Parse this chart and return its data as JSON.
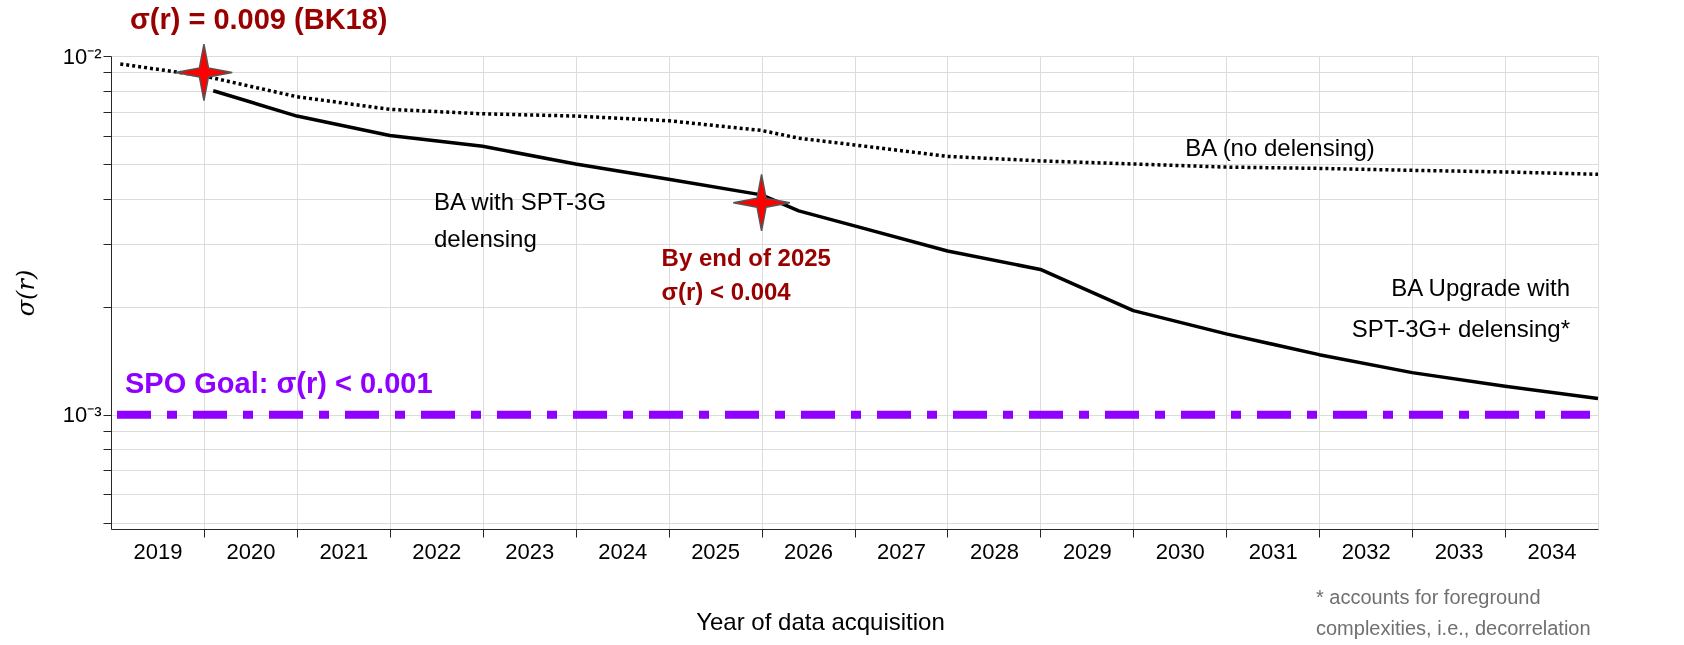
{
  "chart_data": {
    "type": "line",
    "xlabel": "Year of data acquisition",
    "ylabel": "σ(r)",
    "log": true,
    "grid": true,
    "legend": false,
    "xlim": [
      2018.5,
      2034.5
    ],
    "xticks": [
      {
        "value": 2019,
        "label": "2019"
      },
      {
        "value": 2020,
        "label": "2020"
      },
      {
        "value": 2021,
        "label": "2021"
      },
      {
        "value": 2022,
        "label": "2022"
      },
      {
        "value": 2023,
        "label": "2023"
      },
      {
        "value": 2024,
        "label": "2024"
      },
      {
        "value": 2025,
        "label": "2025"
      },
      {
        "value": 2026,
        "label": "2026"
      },
      {
        "value": 2027,
        "label": "2027"
      },
      {
        "value": 2028,
        "label": "2028"
      },
      {
        "value": 2029,
        "label": "2029"
      },
      {
        "value": 2030,
        "label": "2030"
      },
      {
        "value": 2031,
        "label": "2031"
      },
      {
        "value": 2032,
        "label": "2032"
      },
      {
        "value": 2033,
        "label": "2033"
      },
      {
        "value": 2034,
        "label": "2034"
      },
      {
        "value": 2019.5,
        "label": null
      },
      {
        "value": 2020.5,
        "label": null
      },
      {
        "value": 2021.5,
        "label": null
      },
      {
        "value": 2022.5,
        "label": null
      },
      {
        "value": 2023.5,
        "label": null
      },
      {
        "value": 2024.5,
        "label": null
      },
      {
        "value": 2025.5,
        "label": null
      },
      {
        "value": 2026.5,
        "label": null
      },
      {
        "value": 2027.5,
        "label": null
      },
      {
        "value": 2028.5,
        "label": null
      },
      {
        "value": 2029.5,
        "label": null
      },
      {
        "value": 2030.5,
        "label": null
      },
      {
        "value": 2031.5,
        "label": null
      },
      {
        "value": 2032.5,
        "label": null
      },
      {
        "value": 2033.5,
        "label": null
      }
    ],
    "ylim": [
      0.00048,
      0.01
    ],
    "yticks": [
      {
        "value": 0.01,
        "label": "10⁻²"
      },
      {
        "value": 0.001,
        "label": "10⁻³"
      },
      {
        "value": 0.009,
        "label": null
      },
      {
        "value": 0.008,
        "label": null
      },
      {
        "value": 0.007,
        "label": null
      },
      {
        "value": 0.006,
        "label": null
      },
      {
        "value": 0.005,
        "label": null
      },
      {
        "value": 0.004,
        "label": null
      },
      {
        "value": 0.003,
        "label": null
      },
      {
        "value": 0.002,
        "label": null
      },
      {
        "value": 0.0009,
        "label": null
      },
      {
        "value": 0.0008,
        "label": null
      },
      {
        "value": 0.0007,
        "label": null
      },
      {
        "value": 0.0006,
        "label": null
      },
      {
        "value": 0.0005,
        "label": null
      }
    ],
    "series": [
      {
        "name": "BA (no delensing)",
        "color": "#000000",
        "line_style": "dotted",
        "x": [
          2018.6,
          2019.5,
          2020.5,
          2021.5,
          2022.5,
          2023.5,
          2024.5,
          2025.5,
          2025.9,
          2026.5,
          2027.5,
          2028.5,
          2029.5,
          2030.5,
          2031.5,
          2032.5,
          2033.5,
          2034.5
        ],
        "values": [
          0.0095,
          0.0088,
          0.0077,
          0.0071,
          0.0069,
          0.0068,
          0.0066,
          0.0062,
          0.0059,
          0.00565,
          0.00525,
          0.0051,
          0.005,
          0.0049,
          0.00486,
          0.0048,
          0.00475,
          0.00468
        ]
      },
      {
        "name": "BA with SPT-3G\ndelensing",
        "color": "#000000",
        "line_style": "solid",
        "x": [
          2019.6,
          2020.5,
          2021.5,
          2022.5,
          2023.5,
          2024.5,
          2025.5,
          2025.9,
          2026.5,
          2027.5,
          2028.5,
          2029.5,
          2030.5,
          2031.5,
          2032.5,
          2033.5,
          2034.5
        ],
        "values": [
          0.008,
          0.0068,
          0.006,
          0.0056,
          0.005,
          0.00453,
          0.0041,
          0.0037,
          0.00336,
          0.00286,
          0.00254,
          0.00195,
          0.00168,
          0.00147,
          0.00131,
          0.0012,
          0.00111
        ]
      },
      {
        "type": "scatter",
        "color": "#ff0000",
        "marker": "star",
        "x": [
          2019.5,
          2025.5
        ],
        "values": [
          0.009,
          0.0039
        ]
      }
    ],
    "ref_lines": [
      {
        "axis": "y",
        "value": 0.001,
        "label": "SPO Goal:  σ(r) < 0.001",
        "color": "#9000ff",
        "line_style": "dashed"
      }
    ],
    "annotations": [
      {
        "text": "σ(r) = 0.009 (BK18)",
        "x": 2019.5,
        "y": 0.009
      },
      {
        "text": "By end of 2025\nσ(r) < 0.004",
        "x": 2025.5,
        "y": 0.0039
      },
      "BA Upgrade with\nSPT-3G+ delensing*",
      "* accounts for foreground\ncomplexities, i.e., decorrelation"
    ]
  }
}
